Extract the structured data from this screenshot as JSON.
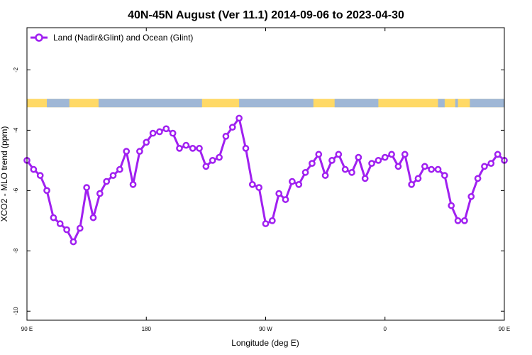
{
  "chart_data": {
    "type": "line",
    "title": "40N-45N August (Ver 11.1)   2014-09-06 to 2023-04-30",
    "xlabel": "Longitude (deg E)",
    "ylabel": "XCO2 - MLO trend (ppm)",
    "xlim": [
      90,
      450
    ],
    "ylim": [
      -10.3,
      -0.6
    ],
    "x_ticks": [
      {
        "value": 90,
        "label": "90 E"
      },
      {
        "value": 180,
        "label": "180"
      },
      {
        "value": 270,
        "label": "90 W"
      },
      {
        "value": 360,
        "label": "0"
      },
      {
        "value": 450,
        "label": "90 E"
      },
      {
        "value": 540,
        "label": "180"
      }
    ],
    "y_ticks": [
      {
        "value": -2,
        "label": "-2"
      },
      {
        "value": -4,
        "label": "-4"
      },
      {
        "value": -6,
        "label": "-6"
      },
      {
        "value": -8,
        "label": "-8"
      },
      {
        "value": -10,
        "label": "-10"
      }
    ],
    "legend": {
      "position": "top-left",
      "entries": [
        "Land (Nadir&Glint) and Ocean (Glint)"
      ]
    },
    "series": [
      {
        "name": "Land (Nadir&Glint) and Ocean (Glint)",
        "color": "#a020f0",
        "x": [
          90,
          95,
          100,
          105,
          110,
          115,
          120,
          125,
          130,
          135,
          140,
          145,
          150,
          155,
          160,
          165,
          170,
          175,
          180,
          185,
          190,
          195,
          200,
          205,
          210,
          215,
          220,
          225,
          230,
          235,
          240,
          245,
          250,
          255,
          260,
          265,
          270,
          275,
          280,
          285,
          290,
          295,
          300,
          305,
          310,
          315,
          320,
          325,
          330,
          335,
          340,
          345,
          350,
          355,
          360,
          365,
          370,
          375,
          380,
          385,
          390,
          395,
          400,
          405,
          410,
          415,
          420,
          425,
          430,
          435,
          440,
          445,
          450
        ],
        "values": [
          -5.0,
          -5.3,
          -5.5,
          -6.0,
          -6.9,
          -7.1,
          -7.3,
          -7.7,
          -7.25,
          -5.9,
          -6.9,
          -6.1,
          -5.7,
          -5.5,
          -5.3,
          -4.7,
          -5.8,
          -4.7,
          -4.4,
          -4.1,
          -4.05,
          -3.95,
          -4.1,
          -4.6,
          -4.5,
          -4.6,
          -4.6,
          -5.2,
          -5.0,
          -4.9,
          -4.2,
          -3.9,
          -3.6,
          -4.6,
          -5.8,
          -5.9,
          -7.1,
          -7.0,
          -6.1,
          -6.3,
          -5.7,
          -5.8,
          -5.4,
          -5.1,
          -4.8,
          -5.5,
          -5.0,
          -4.8,
          -5.3,
          -5.4,
          -4.9,
          -5.6,
          -5.1,
          -5.0,
          -4.9,
          -4.8,
          -5.2,
          -4.8,
          -5.8,
          -5.6,
          -5.2,
          -5.3,
          -5.3,
          -5.5,
          -6.5,
          -7.0,
          -7.0,
          -6.2,
          -5.6,
          -5.2,
          -5.1,
          -4.8,
          -5.0
        ]
      }
    ],
    "surface_bar": {
      "value_y": -3.1,
      "land_color": "#ffd966",
      "ocean_color": "#9fb7d6",
      "ocean_segments": [
        [
          105,
          122
        ],
        [
          144,
          222
        ],
        [
          250,
          306
        ],
        [
          322,
          355
        ],
        [
          400,
          405
        ],
        [
          413,
          415
        ],
        [
          424,
          460
        ]
      ]
    }
  }
}
